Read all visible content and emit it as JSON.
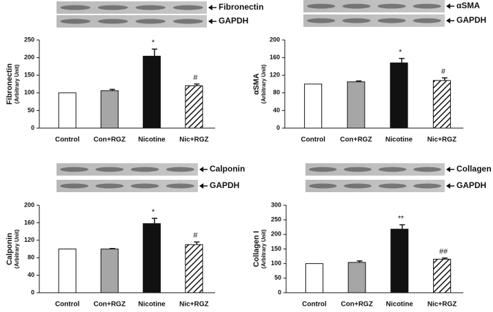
{
  "chart_data": [
    {
      "type": "bar",
      "blot_labels": [
        "Fibronectin",
        "GAPDH"
      ],
      "ylabel": "Fibronectin",
      "ylabel_unit": "(Arbitrary Unit)",
      "categories": [
        "Control",
        "Con+RGZ",
        "Nicotine",
        "Nic+RGZ"
      ],
      "values": [
        100,
        106,
        204,
        120
      ],
      "errors": [
        null,
        4,
        20,
        5
      ],
      "annotations": [
        null,
        null,
        "*",
        "#"
      ],
      "colors": [
        "#ffffff",
        "#a6a6a6",
        "#111111",
        "#ffffff"
      ],
      "hatch": [
        false,
        false,
        false,
        true
      ],
      "ylim": [
        0,
        250
      ],
      "yticks": [
        0,
        50,
        100,
        150,
        200,
        250
      ]
    },
    {
      "type": "bar",
      "blot_labels": [
        "αSMA",
        "GAPDH"
      ],
      "ylabel": "αSMA",
      "ylabel_unit": "(Arbitrary Unit)",
      "categories": [
        "Control",
        "Con+RGZ",
        "Nicotine",
        "Nic+RGZ"
      ],
      "values": [
        100,
        105,
        148,
        108
      ],
      "errors": [
        null,
        2,
        10,
        6
      ],
      "annotations": [
        null,
        null,
        "*",
        "#"
      ],
      "colors": [
        "#ffffff",
        "#a6a6a6",
        "#111111",
        "#ffffff"
      ],
      "hatch": [
        false,
        false,
        false,
        true
      ],
      "ylim": [
        0,
        200
      ],
      "yticks": [
        0,
        40,
        80,
        120,
        160,
        200
      ]
    },
    {
      "type": "bar",
      "blot_labels": [
        "Calponin",
        "GAPDH"
      ],
      "ylabel": "Calponin",
      "ylabel_unit": "(Arbitrary Unit)",
      "categories": [
        "Control",
        "Con+RGZ",
        "Nicotine",
        "Nic+RGZ"
      ],
      "values": [
        100,
        100,
        158,
        110
      ],
      "errors": [
        null,
        1,
        12,
        6
      ],
      "annotations": [
        null,
        null,
        "*",
        "#"
      ],
      "colors": [
        "#ffffff",
        "#a6a6a6",
        "#111111",
        "#ffffff"
      ],
      "hatch": [
        false,
        false,
        false,
        true
      ],
      "ylim": [
        0,
        200
      ],
      "yticks": [
        0,
        40,
        80,
        120,
        160,
        200
      ]
    },
    {
      "type": "bar",
      "blot_labels": [
        "Collagen I",
        "GAPDH"
      ],
      "ylabel": "Collagen I",
      "ylabel_unit": "(Arbitrary Unit)",
      "categories": [
        "Control",
        "Con+RGZ",
        "Nicotine",
        "Nic+RGZ"
      ],
      "values": [
        100,
        104,
        218,
        115
      ],
      "errors": [
        null,
        5,
        15,
        4
      ],
      "annotations": [
        null,
        null,
        "**",
        "##"
      ],
      "colors": [
        "#ffffff",
        "#a6a6a6",
        "#111111",
        "#ffffff"
      ],
      "hatch": [
        false,
        false,
        false,
        true
      ],
      "ylim": [
        0,
        300
      ],
      "yticks": [
        0,
        50,
        100,
        150,
        200,
        250,
        300
      ]
    }
  ]
}
